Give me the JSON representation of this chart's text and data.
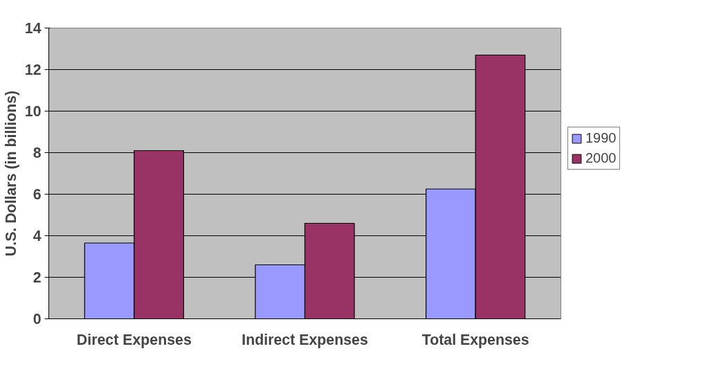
{
  "chart_data": {
    "type": "bar",
    "ylabel": "U.S. Dollars (in billions)",
    "categories": [
      "Direct Expenses",
      "Indirect Expenses",
      "Total Expenses"
    ],
    "series": [
      {
        "name": "1990",
        "color": "#9999ff",
        "values": [
          3.65,
          2.6,
          6.25
        ]
      },
      {
        "name": "2000",
        "color": "#993366",
        "values": [
          8.1,
          4.6,
          12.7
        ]
      }
    ],
    "ylim": [
      0,
      14
    ],
    "yticks": [
      0,
      2,
      4,
      6,
      8,
      10,
      12,
      14
    ],
    "grid": "y",
    "legend": "right"
  }
}
